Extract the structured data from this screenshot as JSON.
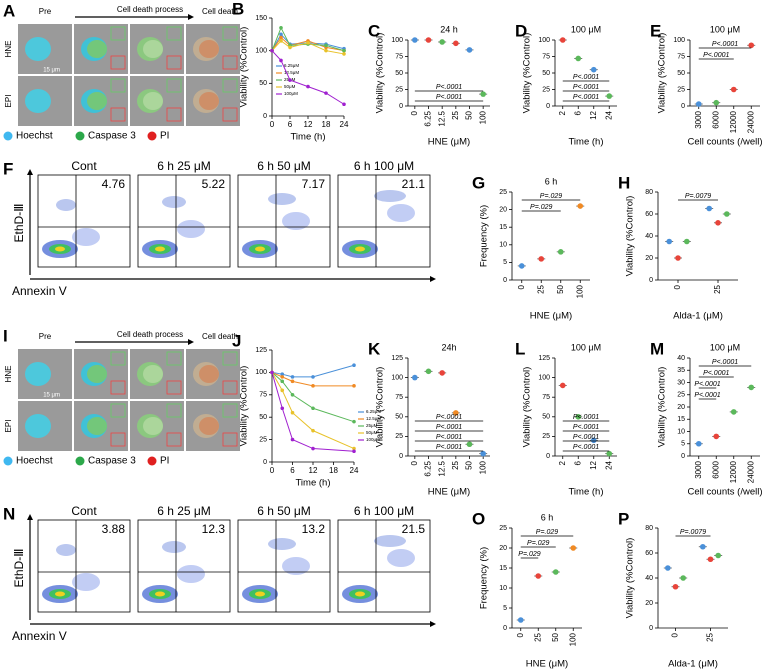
{
  "image_panels": [
    {
      "letter": "A",
      "stages": [
        "Pre",
        "Cell death process",
        "Cell death"
      ],
      "rows": [
        "HNE",
        "EPI"
      ],
      "scale": "15 μm",
      "legend": [
        "Hoechst",
        "Caspase 3",
        "PI"
      ]
    },
    {
      "letter": "I",
      "stages": [
        "Pre",
        "Cell death process",
        "Cell death"
      ],
      "rows": [
        "HNE",
        "EPI"
      ],
      "scale": "15 μm",
      "legend": [
        "Hoechst",
        "Caspase 3",
        "PI"
      ]
    }
  ],
  "flow_panels": [
    {
      "letter": "F",
      "gates": [
        "Cont",
        "6 h 25 μM",
        "6 h 50 μM",
        "6 h 100 μM"
      ],
      "percents": [
        4.76,
        5.22,
        7.17,
        21.1
      ],
      "ylabel": "EthD-Ⅲ",
      "xlabel": "Annexin V"
    },
    {
      "letter": "N",
      "gates": [
        "Cont",
        "6 h 25 μM",
        "6 h 50 μM",
        "6 h 100 μM"
      ],
      "percents": [
        3.88,
        12.3,
        13.2,
        21.5
      ],
      "ylabel": "EthD-Ⅲ",
      "xlabel": "Annexin V"
    }
  ],
  "chart_data": [
    {
      "type": "line",
      "letter": "B",
      "ylabel": "Viability (%Control)",
      "xlabel": "Time (h)",
      "x": [
        0,
        3,
        6,
        12,
        18,
        24
      ],
      "xlim": [
        0,
        24
      ],
      "xticks": [
        0,
        6,
        12,
        18,
        24
      ],
      "ylim": [
        0,
        150
      ],
      "yticks": [
        0,
        50,
        100,
        150
      ],
      "legend": "lower left",
      "series": [
        {
          "name": "6.25μM",
          "color": "#4a90d9",
          "values": [
            100,
            125,
            110,
            112,
            110,
            103
          ]
        },
        {
          "name": "12.5μM",
          "color": "#f08a24",
          "values": [
            100,
            120,
            108,
            115,
            105,
            100
          ]
        },
        {
          "name": "25μM",
          "color": "#5bb85b",
          "values": [
            100,
            135,
            108,
            110,
            108,
            100
          ]
        },
        {
          "name": "50μM",
          "color": "#e8c22a",
          "values": [
            100,
            115,
            105,
            112,
            100,
            95
          ]
        },
        {
          "name": "100μM",
          "color": "#a020d0",
          "values": [
            100,
            85,
            55,
            45,
            35,
            18
          ]
        }
      ]
    },
    {
      "type": "dot",
      "letter": "C",
      "title": "24 h",
      "ylabel": "Viability (%Control)",
      "xlabel": "HNE (μM)",
      "categories": [
        "0",
        "6.25",
        "12.5",
        "25",
        "50",
        "100"
      ],
      "values": [
        100,
        100,
        97,
        95,
        85,
        18
      ],
      "colors": [
        "#4a90d9",
        "#e8443a",
        "#5bb85b",
        "#e8443a",
        "#4a90d9",
        "#5bb85b"
      ],
      "ylim": [
        0,
        100
      ],
      "yticks": [
        0,
        25,
        50,
        75,
        100
      ],
      "annotations": [
        "P<.0001",
        "P<.0001"
      ],
      "annotations_at": "bottom"
    },
    {
      "type": "dot",
      "letter": "D",
      "title": "100 μM",
      "ylabel": "Viability (%Control)",
      "xlabel": "Time (h)",
      "categories": [
        "2",
        "6",
        "12",
        "24"
      ],
      "values": [
        100,
        72,
        55,
        15
      ],
      "colors": [
        "#e8443a",
        "#5bb85b",
        "#4a90d9",
        "#5bb85b"
      ],
      "ylim": [
        0,
        100
      ],
      "yticks": [
        0,
        25,
        50,
        75,
        100
      ],
      "annotations": [
        "P<.0001",
        "P<.0001",
        "P<.0001"
      ],
      "annotations_at": "bottom"
    },
    {
      "type": "dot",
      "letter": "E",
      "title": "100 μM",
      "ylabel": "Viability (%Control)",
      "xlabel": "Cell counts (/well)",
      "categories": [
        "3000",
        "6000",
        "12000",
        "24000"
      ],
      "values": [
        3,
        5,
        25,
        92
      ],
      "colors": [
        "#4a90d9",
        "#5bb85b",
        "#e8443a",
        "#e8443a"
      ],
      "ylim": [
        0,
        100
      ],
      "yticks": [
        0,
        25,
        50,
        75,
        100
      ],
      "annotations": [
        "P<.0001",
        "P<.0001"
      ],
      "annotations_at": "top"
    },
    {
      "type": "dot",
      "letter": "G",
      "title": "6 h",
      "ylabel": "Frequency (%)",
      "xlabel": "HNE (μM)",
      "categories": [
        "0",
        "25",
        "50",
        "100"
      ],
      "values": [
        4,
        6,
        8,
        21
      ],
      "colors": [
        "#4a90d9",
        "#e8443a",
        "#5bb85b",
        "#f08a24"
      ],
      "ylim": [
        0,
        25
      ],
      "yticks": [
        0,
        5,
        10,
        15,
        20,
        25
      ],
      "annotations": [
        "P=.029",
        "P=.029"
      ],
      "annotations_at": "top"
    },
    {
      "type": "dot",
      "letter": "H",
      "ylabel": "Viability (%Control)",
      "xlabel": "Alda-1 (μM)",
      "categories": [
        "0",
        "25"
      ],
      "series": [
        {
          "color": "#4a90d9",
          "values": [
            35,
            65
          ]
        },
        {
          "color": "#e8443a",
          "values": [
            20,
            52
          ]
        },
        {
          "color": "#5bb85b",
          "values": [
            35,
            60
          ]
        }
      ],
      "ylim": [
        0,
        80
      ],
      "yticks": [
        0,
        20,
        40,
        60,
        80
      ],
      "annotations": [
        "P=.0079"
      ],
      "annotations_at": "top"
    },
    {
      "type": "line",
      "letter": "J",
      "ylabel": "Viability (%Control)",
      "xlabel": "Time (h)",
      "x": [
        0,
        3,
        6,
        12,
        24
      ],
      "xlim": [
        0,
        24
      ],
      "xticks": [
        0,
        6,
        12,
        18,
        24
      ],
      "ylim": [
        0,
        125
      ],
      "yticks": [
        0,
        25,
        50,
        75,
        100,
        125
      ],
      "legend": "lower right",
      "series": [
        {
          "name": "6.25μM",
          "color": "#4a90d9",
          "values": [
            100,
            98,
            95,
            95,
            108
          ]
        },
        {
          "name": "12.5μM",
          "color": "#f08a24",
          "values": [
            100,
            95,
            90,
            85,
            85
          ]
        },
        {
          "name": "25μM",
          "color": "#5bb85b",
          "values": [
            100,
            90,
            75,
            60,
            45
          ]
        },
        {
          "name": "50μM",
          "color": "#e8c22a",
          "values": [
            100,
            80,
            55,
            35,
            15
          ]
        },
        {
          "name": "100μM",
          "color": "#a020d0",
          "values": [
            100,
            60,
            25,
            15,
            12
          ]
        }
      ]
    },
    {
      "type": "dot",
      "letter": "K",
      "title": "24h",
      "ylabel": "Viability (%Control)",
      "xlabel": "HNE (μM)",
      "categories": [
        "0",
        "6.25",
        "12.5",
        "25",
        "50",
        "100"
      ],
      "values": [
        100,
        108,
        106,
        55,
        15,
        3
      ],
      "colors": [
        "#4a90d9",
        "#5bb85b",
        "#e8443a",
        "#f08a24",
        "#5bb85b",
        "#4a90d9"
      ],
      "ylim": [
        0,
        125
      ],
      "yticks": [
        0,
        25,
        50,
        75,
        100,
        125
      ],
      "annotations": [
        "P<.0001",
        "P<.0001",
        "P<.0001",
        "P<.0001"
      ],
      "annotations_at": "bottom"
    },
    {
      "type": "dot",
      "letter": "L",
      "title": "100 μM",
      "ylabel": "Viability (%Control)",
      "xlabel": "Time (h)",
      "categories": [
        "2",
        "6",
        "12",
        "24"
      ],
      "values": [
        90,
        50,
        20,
        3
      ],
      "colors": [
        "#e8443a",
        "#5bb85b",
        "#4a90d9",
        "#5bb85b"
      ],
      "ylim": [
        0,
        125
      ],
      "yticks": [
        0,
        25,
        50,
        75,
        100,
        125
      ],
      "annotations": [
        "P<.0001",
        "P<.0001",
        "P<.0001",
        "P<.0001"
      ],
      "annotations_at": "bottom"
    },
    {
      "type": "dot",
      "letter": "M",
      "title": "100 μM",
      "ylabel": "Viability (%Control)",
      "xlabel": "Cell counts (/well)",
      "categories": [
        "3000",
        "6000",
        "12000",
        "24000"
      ],
      "values": [
        5,
        8,
        18,
        28
      ],
      "colors": [
        "#4a90d9",
        "#e8443a",
        "#5bb85b",
        "#5bb85b"
      ],
      "ylim": [
        0,
        40
      ],
      "yticks": [
        0,
        5,
        10,
        15,
        20,
        25,
        30,
        35,
        40
      ],
      "annotations": [
        "P<.0001",
        "P<.0001",
        "P<.0001",
        "P<.0001"
      ],
      "annotations_at": "top"
    },
    {
      "type": "dot",
      "letter": "O",
      "title": "6 h",
      "ylabel": "Frequency (%)",
      "xlabel": "HNE (μM)",
      "categories": [
        "0",
        "25",
        "50",
        "100"
      ],
      "values": [
        2,
        13,
        14,
        20
      ],
      "colors": [
        "#4a90d9",
        "#e8443a",
        "#5bb85b",
        "#f08a24"
      ],
      "ylim": [
        0,
        25
      ],
      "yticks": [
        0,
        5,
        10,
        15,
        20,
        25
      ],
      "annotations": [
        "P=.029",
        "P=.029",
        "P=.029"
      ],
      "annotations_at": "top"
    },
    {
      "type": "dot",
      "letter": "P",
      "ylabel": "Viability (%Control)",
      "xlabel": "Alda-1 (μM)",
      "categories": [
        "0",
        "25"
      ],
      "series": [
        {
          "color": "#4a90d9",
          "values": [
            48,
            65
          ]
        },
        {
          "color": "#e8443a",
          "values": [
            33,
            55
          ]
        },
        {
          "color": "#5bb85b",
          "values": [
            40,
            58
          ]
        }
      ],
      "ylim": [
        0,
        80
      ],
      "yticks": [
        0,
        20,
        40,
        60,
        80
      ],
      "annotations": [
        "P=.0079"
      ],
      "annotations_at": "top"
    }
  ]
}
